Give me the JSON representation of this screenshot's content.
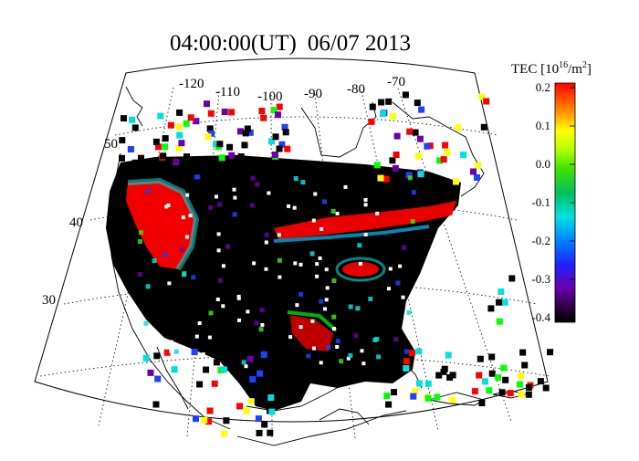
{
  "title": {
    "time": "04:00:00(UT)",
    "date": "06/07 2013"
  },
  "map": {
    "projection": "conic",
    "longitude_labels": [
      "-120",
      "-110",
      "-100",
      "-90",
      "-80",
      "-70"
    ],
    "latitude_labels": [
      "50",
      "40",
      "30"
    ],
    "grid": "dotted"
  },
  "colorbar": {
    "title_prefix": "TEC [10",
    "title_exp": "16",
    "title_unit": "/m",
    "title_unit_exp": "2",
    "title_close": "]",
    "ticks": [
      "0.2",
      "0.1",
      "0.0",
      "-0.1",
      "-0.2",
      "-0.3",
      "-0.4"
    ],
    "range": [
      -0.4,
      0.2
    ]
  },
  "colors": {
    "background": "#000000",
    "high": "#ff0000",
    "mid": "#00ff00",
    "low": "#2a0040"
  }
}
